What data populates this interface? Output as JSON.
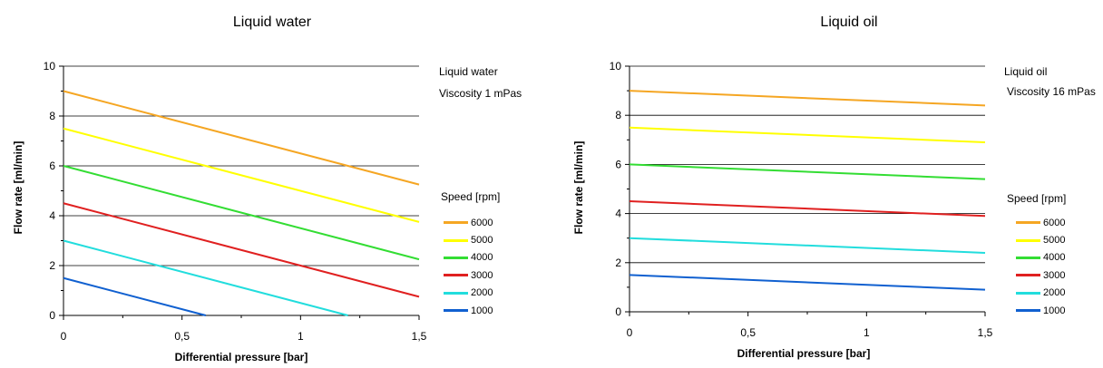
{
  "chart_data": [
    {
      "type": "line",
      "title": "Liquid water",
      "info": [
        "Liquid water",
        "Viscosity 1 mPas"
      ],
      "xlabel": "Differential pressure [bar]",
      "ylabel": "Flow rate [ml/min]",
      "xlim": [
        0,
        1.5
      ],
      "ylim": [
        0,
        10
      ],
      "xticks": [
        "0",
        "0,5",
        "1",
        "1,5"
      ],
      "yticks": [
        "0",
        "2",
        "4",
        "6",
        "8",
        "10"
      ],
      "grid": "horizontal",
      "legend_title": "Speed [rpm]",
      "series": [
        {
          "name": "6000",
          "color": "#f5a623",
          "x": [
            0,
            1.5
          ],
          "y": [
            9.0,
            5.25
          ]
        },
        {
          "name": "5000",
          "color": "#ffff00",
          "x": [
            0,
            1.5
          ],
          "y": [
            7.5,
            3.75
          ]
        },
        {
          "name": "4000",
          "color": "#33dd33",
          "x": [
            0,
            1.5
          ],
          "y": [
            6.0,
            2.25
          ]
        },
        {
          "name": "3000",
          "color": "#e02020",
          "x": [
            0,
            1.5
          ],
          "y": [
            4.5,
            0.75
          ]
        },
        {
          "name": "2000",
          "color": "#22dddd",
          "x": [
            0,
            1.2
          ],
          "y": [
            3.0,
            0
          ]
        },
        {
          "name": "1000",
          "color": "#1060d0",
          "x": [
            0,
            0.6
          ],
          "y": [
            1.5,
            0
          ]
        }
      ]
    },
    {
      "type": "line",
      "title": "Liquid oil",
      "info": [
        "Liquid oil",
        "Viscosity 16 mPas"
      ],
      "xlabel": "Differential pressure [bar]",
      "ylabel": "Flow rate [ml/min]",
      "xlim": [
        0,
        1.5
      ],
      "ylim": [
        0,
        10
      ],
      "xticks": [
        "0",
        "0,5",
        "1",
        "1,5"
      ],
      "yticks": [
        "0",
        "2",
        "4",
        "6",
        "8",
        "10"
      ],
      "grid": "horizontal",
      "legend_title": "Speed [rpm]",
      "series": [
        {
          "name": "6000",
          "color": "#f5a623",
          "x": [
            0,
            1.5
          ],
          "y": [
            9.0,
            8.4
          ]
        },
        {
          "name": "5000",
          "color": "#ffff00",
          "x": [
            0,
            1.5
          ],
          "y": [
            7.5,
            6.9
          ]
        },
        {
          "name": "4000",
          "color": "#33dd33",
          "x": [
            0,
            1.5
          ],
          "y": [
            6.0,
            5.4
          ]
        },
        {
          "name": "3000",
          "color": "#e02020",
          "x": [
            0,
            1.5
          ],
          "y": [
            4.5,
            3.9
          ]
        },
        {
          "name": "2000",
          "color": "#22dddd",
          "x": [
            0,
            1.5
          ],
          "y": [
            3.0,
            2.4
          ]
        },
        {
          "name": "1000",
          "color": "#1060d0",
          "x": [
            0,
            1.5
          ],
          "y": [
            1.5,
            0.9
          ]
        }
      ]
    }
  ]
}
